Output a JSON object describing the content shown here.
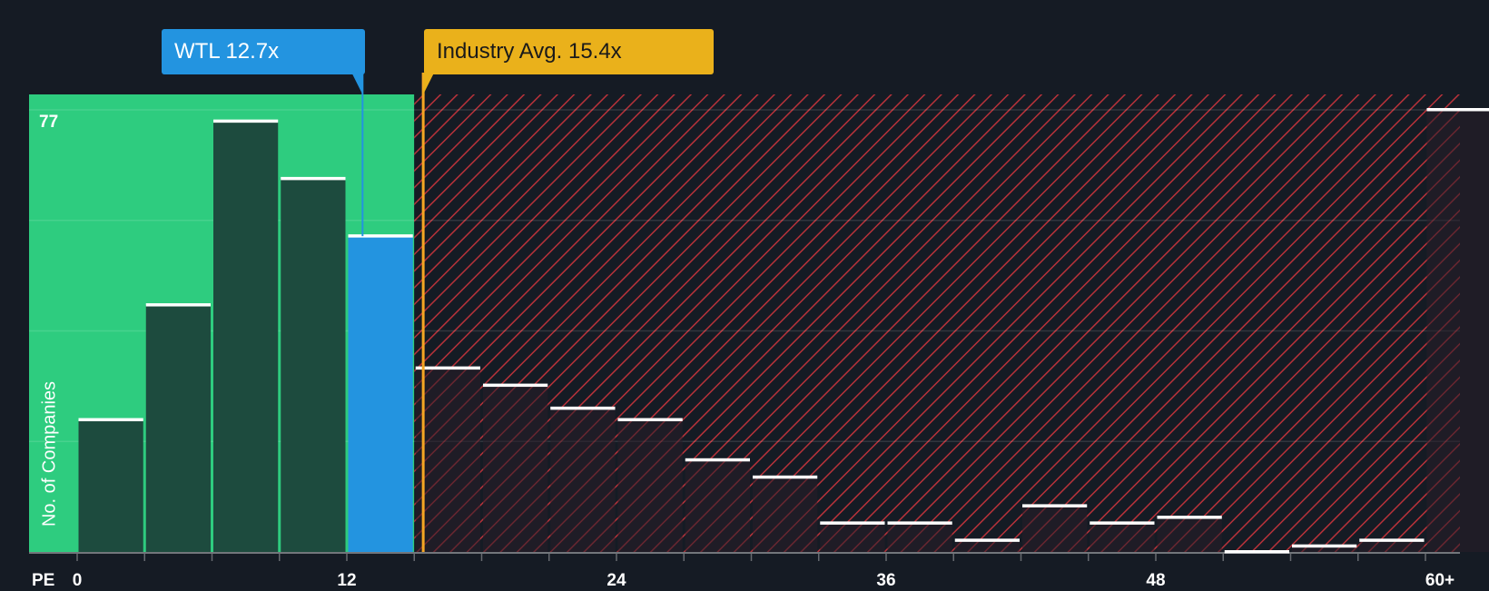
{
  "chart_data": {
    "type": "bar",
    "title": "",
    "xlabel": "PE",
    "ylabel": "No. of Companies",
    "y_max_label": "77",
    "ylim": [
      0,
      80
    ],
    "grid": true,
    "bins": [
      {
        "start": 0,
        "end": 3,
        "count": 23
      },
      {
        "start": 3,
        "end": 6,
        "count": 43
      },
      {
        "start": 6,
        "end": 9,
        "count": 75
      },
      {
        "start": 9,
        "end": 12,
        "count": 65
      },
      {
        "start": 12,
        "end": 15,
        "count": 55
      },
      {
        "start": 15,
        "end": 18,
        "count": 32
      },
      {
        "start": 18,
        "end": 21,
        "count": 29
      },
      {
        "start": 21,
        "end": 24,
        "count": 25
      },
      {
        "start": 24,
        "end": 27,
        "count": 23
      },
      {
        "start": 27,
        "end": 30,
        "count": 16
      },
      {
        "start": 30,
        "end": 33,
        "count": 13
      },
      {
        "start": 33,
        "end": 36,
        "count": 5
      },
      {
        "start": 36,
        "end": 39,
        "count": 5
      },
      {
        "start": 39,
        "end": 42,
        "count": 2
      },
      {
        "start": 42,
        "end": 45,
        "count": 8
      },
      {
        "start": 45,
        "end": 48,
        "count": 5
      },
      {
        "start": 48,
        "end": 51,
        "count": 6
      },
      {
        "start": 51,
        "end": 54,
        "count": 0
      },
      {
        "start": 54,
        "end": 57,
        "count": 1
      },
      {
        "start": 57,
        "end": 60,
        "count": 2
      },
      {
        "start": 60,
        "end": 63,
        "count": 77
      }
    ],
    "x_ticks": [
      {
        "value": 0,
        "label": "0"
      },
      {
        "value": 12,
        "label": "12"
      },
      {
        "value": 24,
        "label": "24"
      },
      {
        "value": 36,
        "label": "36"
      },
      {
        "value": 48,
        "label": "48"
      },
      {
        "value": 60,
        "label": "60+"
      }
    ],
    "company": {
      "label": "WTL 12.7x",
      "value": 12.7,
      "bin_index": 4
    },
    "industry_avg": {
      "label": "Industry Avg. 15.4x",
      "value": 15.4
    },
    "colors": {
      "background": "#151b24",
      "undervalued_region": "#2ecc7f",
      "bar_dark": "#1d4b3e",
      "company_bar": "#2394e0",
      "company_callout": "#2394e0",
      "industry_callout": "#eab11b",
      "industry_line": "#f5a623",
      "hatch": "#b8323a",
      "bar_cap": "#ffffff"
    }
  }
}
